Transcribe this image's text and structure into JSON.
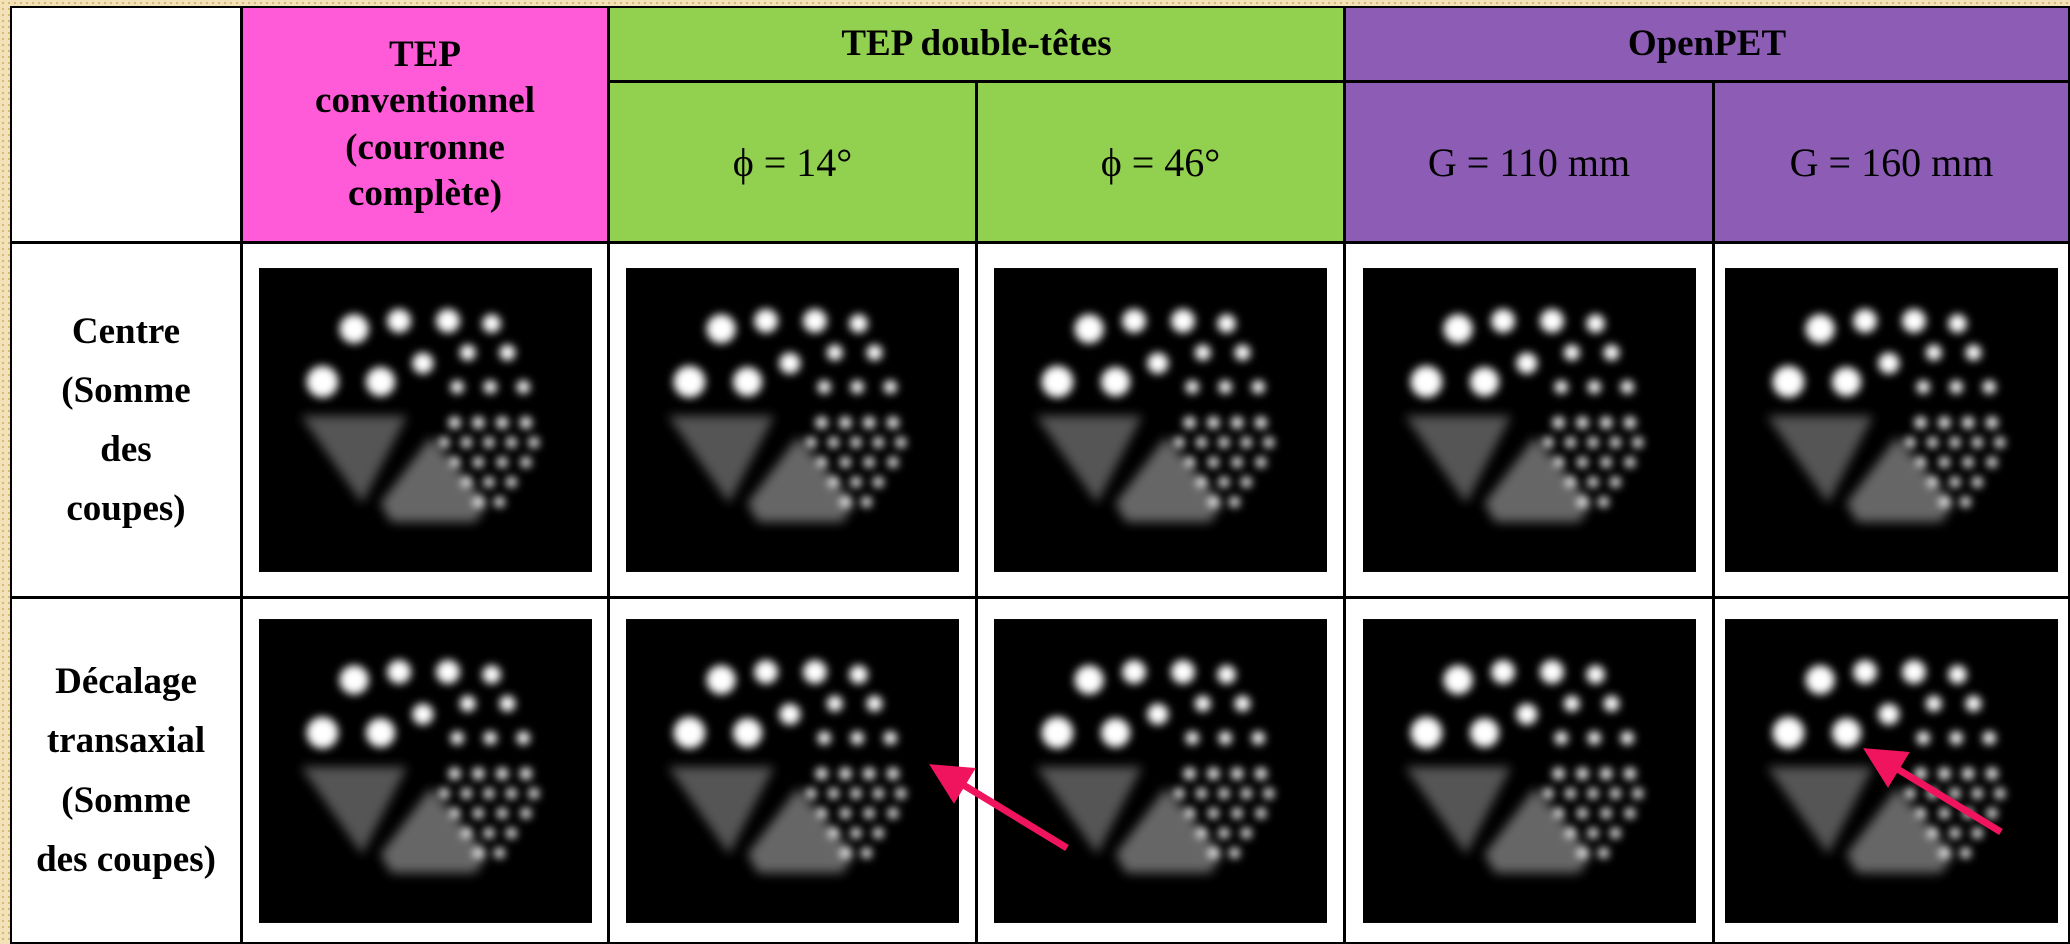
{
  "table": {
    "groups": [
      "TEP conventionnel (couronne complète)",
      "TEP double-têtes",
      "OpenPET"
    ],
    "subheaders": [
      "ϕ = 14°",
      "ϕ = 46°",
      "G = 110 mm",
      "G = 160 mm"
    ],
    "rows": [
      "Centre (Somme des coupes)",
      "Décalage transaxial (Somme des coupes)"
    ]
  }
}
